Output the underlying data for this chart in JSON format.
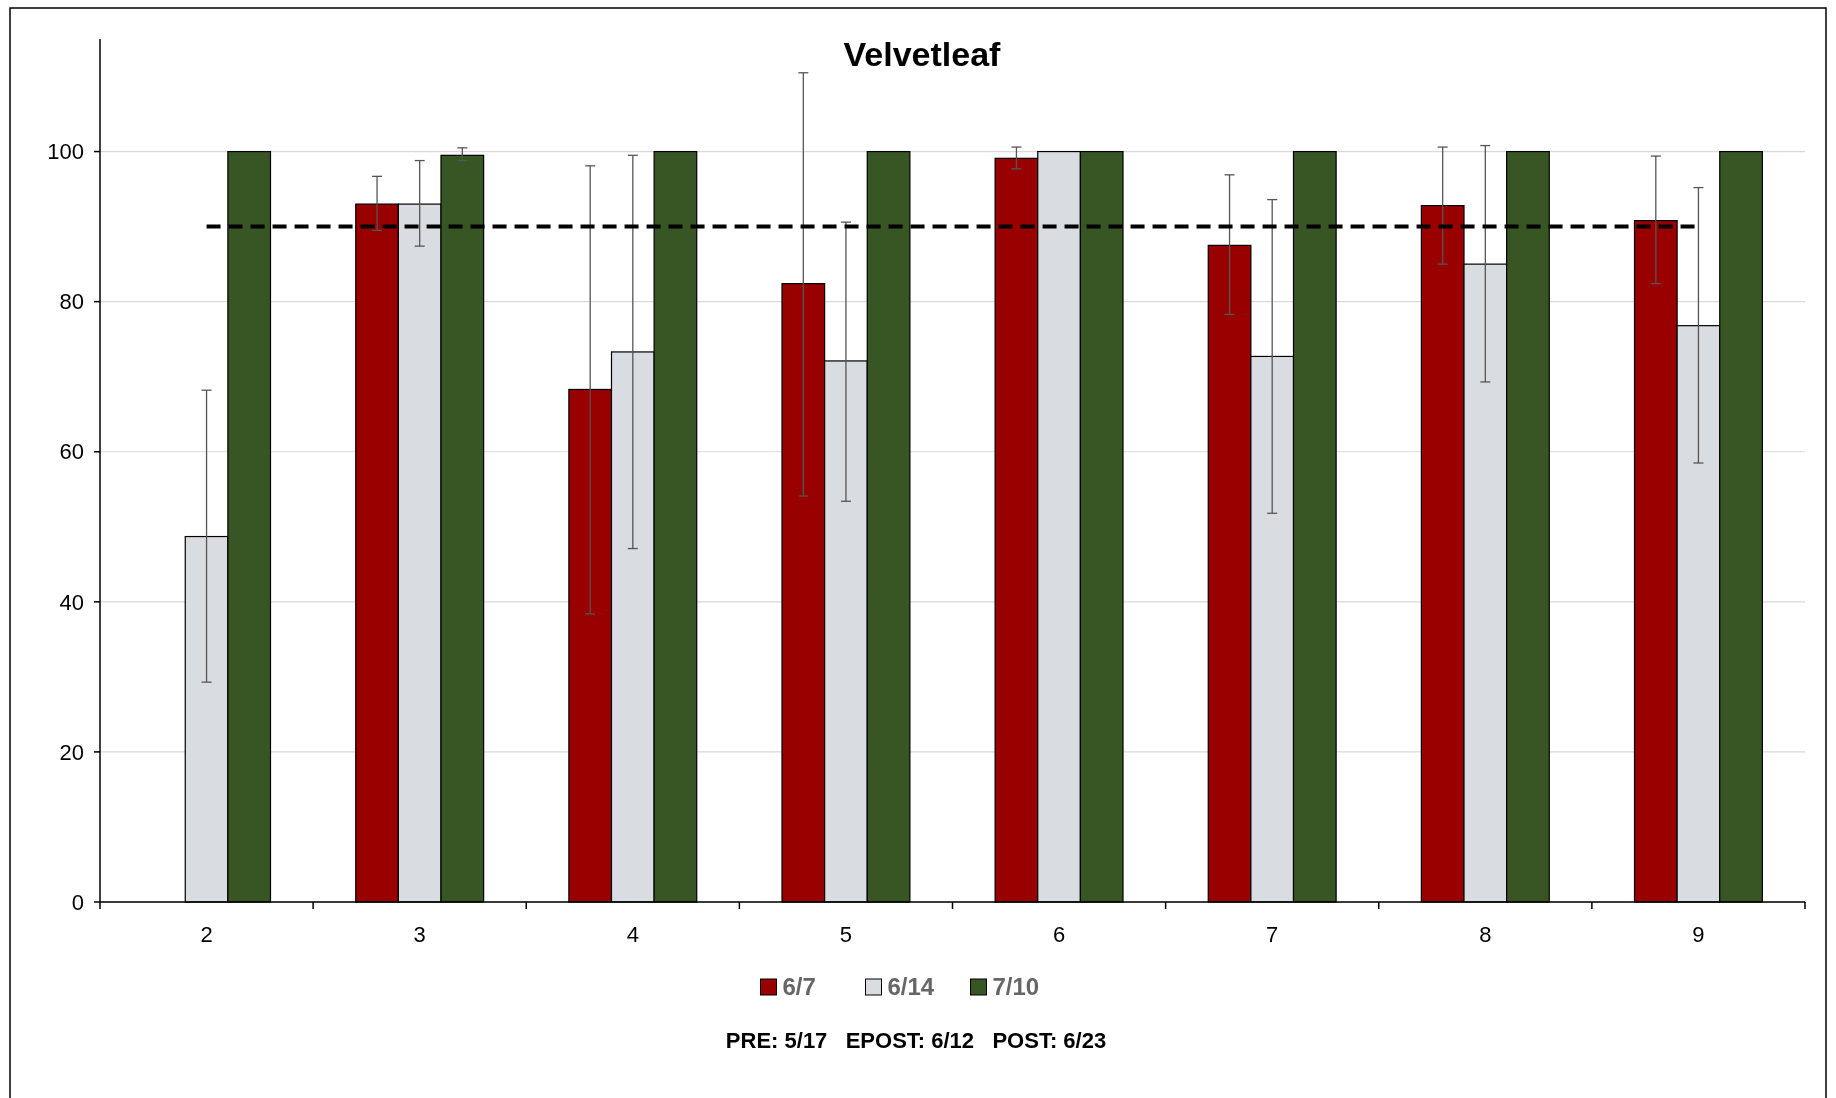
{
  "chart_data": {
    "type": "bar",
    "title": "Velvetleaf",
    "categories": [
      "2",
      "3",
      "4",
      "5",
      "6",
      "7",
      "8",
      "9"
    ],
    "series": [
      {
        "name": "6/7",
        "color": "#990000",
        "values": [
          null,
          93,
          68.3,
          82.4,
          99.1,
          87.5,
          92.8,
          90.8
        ],
        "errors": [
          null,
          [
            89.5,
            96.7
          ],
          [
            38.4,
            98.1
          ],
          [
            54.1,
            110.5
          ],
          [
            97.7,
            100.6
          ],
          [
            78.3,
            96.9
          ],
          [
            85,
            100.6
          ],
          [
            82.4,
            99.4
          ]
        ]
      },
      {
        "name": "6/14",
        "color": "#d9dde1",
        "values": [
          48.7,
          93,
          73.3,
          72.1,
          100,
          72.7,
          85,
          76.8
        ],
        "errors": [
          [
            29.3,
            68.2
          ],
          [
            87.4,
            98.8
          ],
          [
            47.1,
            99.5
          ],
          [
            53.4,
            90.6
          ],
          null,
          [
            51.8,
            93.6
          ],
          [
            69.3,
            100.8
          ],
          [
            58.5,
            95.2
          ]
        ]
      },
      {
        "name": "7/10",
        "color": "#375623",
        "values": [
          100,
          99.5,
          100,
          100,
          100,
          100,
          100,
          100
        ],
        "errors": [
          null,
          [
            98.8,
            100.5
          ],
          null,
          null,
          null,
          null,
          null,
          null
        ]
      }
    ],
    "ylim": [
      0,
      115
    ],
    "yticks": [
      0,
      20,
      40,
      60,
      80,
      100
    ],
    "grid": "y",
    "legend": "bottom",
    "ref_lines": [
      {
        "axis": "y",
        "value": 90,
        "color": "#000000",
        "line_style": "dashed"
      }
    ],
    "annotations": [
      "PRE: 5/17   EPOST: 6/12   POST: 6/23"
    ]
  }
}
